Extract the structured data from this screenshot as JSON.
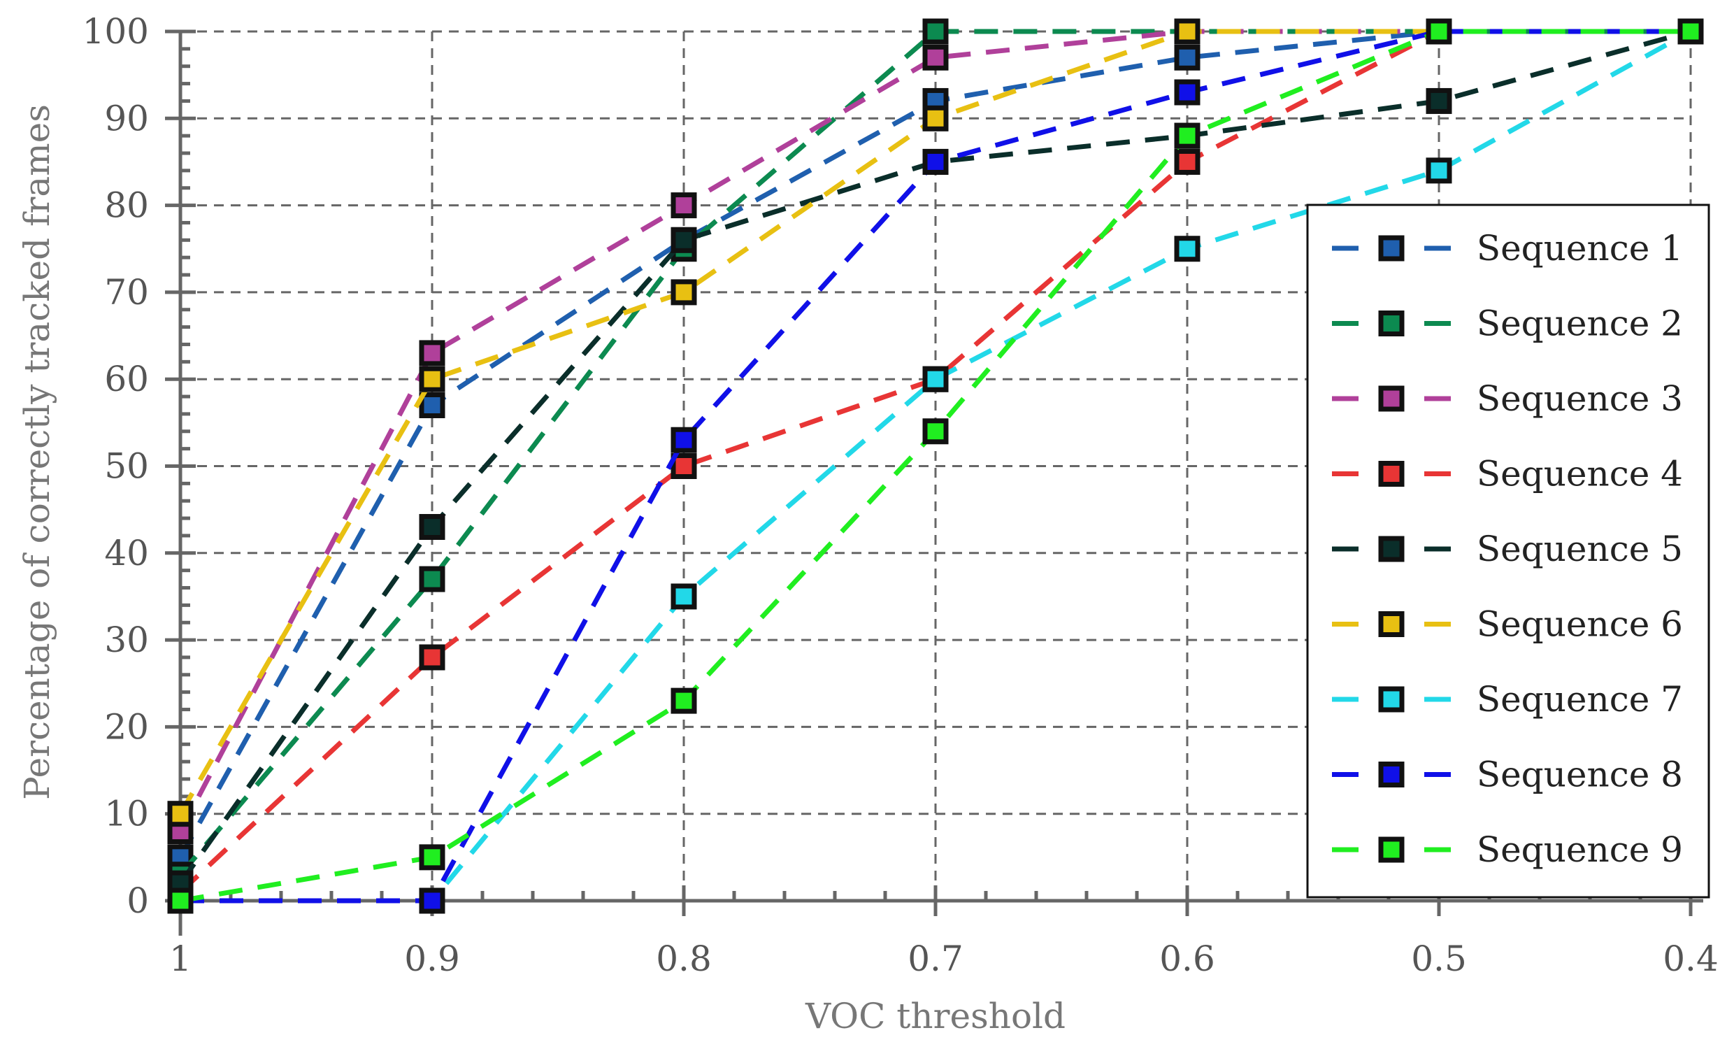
{
  "chart_data": {
    "type": "line",
    "title": "",
    "xlabel": "VOC threshold",
    "ylabel": "Percentage of correctly tracked frames",
    "x": [
      1,
      0.9,
      0.8,
      0.7,
      0.6,
      0.5,
      0.4
    ],
    "x_tick_labels": [
      "1",
      "0.9",
      "0.8",
      "0.7",
      "0.6",
      "0.5",
      "0.4"
    ],
    "y_ticks": [
      0,
      10,
      20,
      30,
      40,
      50,
      60,
      70,
      80,
      90,
      100
    ],
    "xlim": [
      1,
      0.4
    ],
    "ylim": [
      0,
      100
    ],
    "grid": true,
    "legend_position": "bottom-right",
    "series": [
      {
        "name": "Sequence 1",
        "color": "#1f5fae",
        "values": [
          5,
          57,
          76,
          92,
          97,
          100,
          100
        ]
      },
      {
        "name": "Sequence 2",
        "color": "#0c8a50",
        "values": [
          3,
          37,
          75,
          100,
          100,
          100,
          100
        ]
      },
      {
        "name": "Sequence 3",
        "color": "#b0409a",
        "values": [
          8,
          63,
          80,
          97,
          100,
          100,
          100
        ]
      },
      {
        "name": "Sequence 4",
        "color": "#e83535",
        "values": [
          1,
          28,
          50,
          60,
          85,
          100,
          100
        ]
      },
      {
        "name": "Sequence 5",
        "color": "#0a2e2a",
        "values": [
          2,
          43,
          76,
          85,
          88,
          92,
          100
        ]
      },
      {
        "name": "Sequence 6",
        "color": "#e8c012",
        "values": [
          10,
          60,
          70,
          90,
          100,
          100,
          100
        ]
      },
      {
        "name": "Sequence 7",
        "color": "#22d8e8",
        "values": [
          0,
          0,
          35,
          60,
          75,
          84,
          100
        ]
      },
      {
        "name": "Sequence 8",
        "color": "#1010e8",
        "values": [
          0,
          0,
          53,
          85,
          93,
          100,
          100
        ]
      },
      {
        "name": "Sequence 9",
        "color": "#20ee20",
        "values": [
          0,
          5,
          23,
          54,
          88,
          100,
          100
        ]
      }
    ]
  }
}
